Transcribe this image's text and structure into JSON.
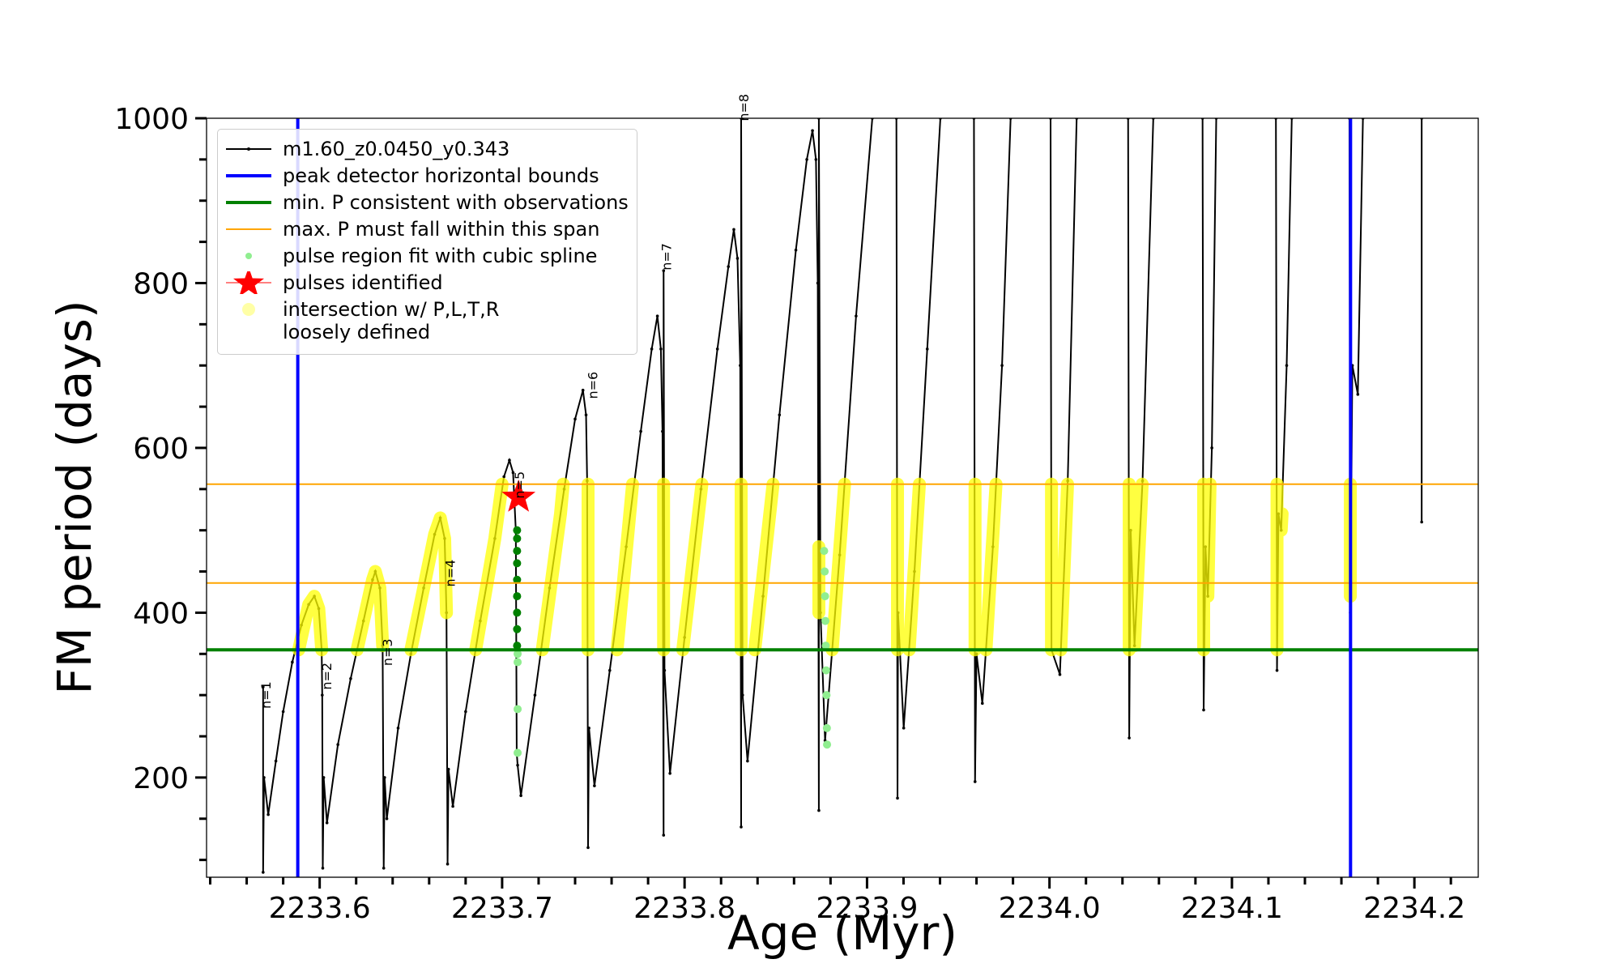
{
  "chart_data": {
    "type": "line",
    "xlabel": "Age (Myr)",
    "ylabel": "FM period (days)",
    "xlim": [
      2233.538,
      2234.235
    ],
    "ylim": [
      79,
      1000
    ],
    "xticks": [
      2233.6,
      2233.7,
      2233.8,
      2233.9,
      {
        "value": 2234,
        "label": "2234.0"
      },
      2234.1,
      2234.2
    ],
    "yticks": [
      200,
      400,
      600,
      800,
      1000
    ],
    "xminorticks": [
      2233.54,
      2233.56,
      2233.58,
      2233.62,
      2233.64,
      2233.66,
      2233.68,
      2233.72,
      2233.74,
      2233.76,
      2233.78,
      2233.82,
      2233.84,
      2233.86,
      2233.88,
      2233.92,
      2233.94,
      2233.96,
      2233.98,
      2234.02,
      2234.04,
      2234.06,
      2234.08,
      2234.12,
      2234.14,
      2234.16,
      2234.18,
      2234.22
    ],
    "yminorticks": [
      100,
      150,
      250,
      300,
      350,
      450,
      500,
      550,
      650,
      700,
      750,
      850,
      900,
      950
    ],
    "grid": false,
    "legend": "upper left",
    "series": [
      {
        "name": "m1.60_z0.0450_y0.343",
        "kind": "line",
        "color": "#000000",
        "x": [
          2233.569,
          2233.569,
          2233.5695,
          2233.5718,
          2233.576,
          2233.58,
          2233.585,
          2233.59,
          2233.594,
          2233.5971,
          2233.5995,
          2233.6011,
          2233.6014,
          2233.6017,
          2233.6022,
          2233.604,
          2233.61,
          2233.617,
          2233.624,
          2233.629,
          2233.6305,
          2233.633,
          2233.6345,
          2233.6351,
          2233.6356,
          2233.6368,
          2233.643,
          2233.65,
          2233.657,
          2233.663,
          2233.6661,
          2233.6685,
          2233.6695,
          2233.6701,
          2233.6706,
          2233.673,
          2233.68,
          2233.688,
          2233.696,
          2233.701,
          2233.704,
          2233.706,
          2233.7075,
          2233.708,
          2233.7085,
          2233.7103,
          2233.718,
          2233.726,
          2233.734,
          2233.74,
          2233.7443,
          2233.746,
          2233.7466,
          2233.7471,
          2233.7476,
          2233.7506,
          2233.759,
          2233.768,
          2233.776,
          2233.782,
          2233.7851,
          2233.787,
          2233.7879,
          2233.7885,
          2233.7885,
          2233.789,
          2233.792,
          2233.8,
          2233.809,
          2233.818,
          2233.824,
          2233.827,
          2233.829,
          2233.8305,
          2233.831,
          2233.831,
          2233.8318,
          2233.8345,
          2233.843,
          2233.852,
          2233.861,
          2233.867,
          2233.8701,
          2233.872,
          2233.873,
          2233.8736,
          2233.8736,
          2233.8745,
          2233.877,
          2233.885,
          2233.894,
          2233.9029,
          null,
          2233.9161,
          2233.9167,
          2233.917,
          2233.9201,
          2233.926,
          2233.933,
          2233.9402,
          null,
          2233.9586,
          2233.9592,
          2233.96,
          2233.9632,
          2233.969,
          2233.974,
          2233.9787,
          null,
          2234.0006,
          2234.0011,
          2234.0057,
          2234.01,
          2234.0149,
          null,
          2234.0431,
          2234.0437,
          2234.0445,
          2234.0466,
          2234.051,
          2234.0569,
          null,
          2234.0839,
          2234.0845,
          2234.0855,
          2234.0868,
          2234.089,
          2234.0914,
          null,
          2234.1241,
          2234.1247,
          2234.1255,
          2234.127,
          2234.13,
          2234.1328,
          null,
          2234.1644,
          2234.1649,
          2234.166,
          2234.169,
          2234.1718,
          null,
          2234.204,
          2234.204
        ],
        "y": [
          310,
          85,
          200,
          155,
          220,
          280,
          340,
          385,
          410,
          420,
          405,
          355,
          300,
          90,
          200,
          145,
          240,
          320,
          390,
          440,
          450,
          430,
          360,
          90,
          200,
          150,
          260,
          350,
          430,
          495,
          515,
          490,
          400,
          95,
          210,
          165,
          280,
          390,
          490,
          565,
          585,
          570,
          500,
          230,
          215,
          178,
          300,
          430,
          550,
          635,
          670,
          640,
          560,
          115,
          260,
          190,
          330,
          480,
          620,
          720,
          760,
          720,
          620,
          130,
          815,
          330,
          205,
          370,
          550,
          720,
          820,
          865,
          830,
          700,
          140,
          1000,
          300,
          220,
          420,
          640,
          840,
          950,
          985,
          950,
          800,
          160,
          1000,
          400,
          245,
          470,
          760,
          1000,
          null,
          1000,
          175,
          400,
          260,
          450,
          720,
          1000,
          null,
          1000,
          195,
          350,
          290,
          480,
          700,
          1000,
          null,
          1000,
          355,
          325,
          560,
          1000,
          null,
          1000,
          248,
          500,
          360,
          560,
          1000,
          null,
          1000,
          282,
          480,
          420,
          600,
          1000,
          null,
          1000,
          330,
          520,
          500,
          700,
          1000,
          null,
          1000,
          400,
          700,
          665,
          1000,
          null,
          1000,
          510
        ]
      },
      {
        "name": "peak detector horizontal bounds",
        "kind": "vline",
        "color": "#0000ff",
        "x": [
          2233.588,
          2234.165
        ]
      },
      {
        "name": "min. P consistent with observations",
        "kind": "hline",
        "color": "#008000",
        "y": [
          355
        ]
      },
      {
        "name": "max. P must fall within this span",
        "kind": "hline",
        "color": "#ffa500",
        "y": [
          436,
          556
        ]
      },
      {
        "name": "pulse region fit with cubic spline",
        "kind": "scatter",
        "color": "#90ee90",
        "x": [
          2233.7085,
          2233.7085,
          2233.7085,
          2233.7085,
          2233.8765,
          2233.8768,
          2233.877,
          2233.8772,
          2233.8774,
          2233.8776,
          2233.8778,
          2233.878,
          2233.8781
        ],
        "y": [
          230,
          283,
          340,
          350,
          475,
          450,
          420,
          390,
          360,
          330,
          300,
          260,
          240
        ]
      },
      {
        "name": "pulses identified",
        "kind": "star",
        "color": "#ff0000",
        "x": [
          2233.709
        ],
        "y": [
          540
        ]
      },
      {
        "name": "intersection w/ P,L,T,R\nloosely defined",
        "kind": "band",
        "color": "#ffff00",
        "x": [
          2233.5885,
          2233.594,
          2233.5971,
          2233.5995,
          2233.6011,
          null,
          2233.6205,
          2233.629,
          2233.6305,
          2233.633,
          2233.6345,
          null,
          2233.65,
          2233.657,
          2233.663,
          2233.6661,
          2233.6685,
          2233.6695,
          null,
          2233.6855,
          2233.696,
          2233.7,
          null,
          2233.722,
          2233.732,
          2233.7335,
          null,
          2233.7471,
          2233.7471,
          null,
          2233.763,
          2233.7715,
          null,
          2233.7885,
          2233.7885,
          null,
          2233.799,
          2233.8095,
          null,
          2233.831,
          2233.831,
          null,
          2233.8385,
          2233.8485,
          null,
          2233.8736,
          2233.8736,
          null,
          2233.8809,
          2233.8877,
          null,
          2233.9167,
          2233.9167,
          null,
          2233.9231,
          2233.9287,
          null,
          2233.9592,
          2233.9592,
          null,
          2233.9652,
          2233.9707,
          null,
          2234.0011,
          2234.0011,
          null,
          2234.0062,
          2234.0099,
          null,
          2234.0437,
          2234.0437,
          null,
          2234.0466,
          2234.0508,
          null,
          2234.0845,
          2234.0845,
          null,
          2234.0868,
          2234.088,
          null,
          2234.1247,
          2234.1247,
          null,
          2234.127,
          2234.1275,
          null,
          2234.1649,
          2234.1649
        ],
        "y": [
          355,
          410,
          420,
          405,
          355,
          null,
          355,
          440,
          450,
          430,
          360,
          null,
          355,
          430,
          495,
          515,
          490,
          400,
          null,
          355,
          490,
          556,
          null,
          355,
          520,
          556,
          null,
          355,
          556,
          null,
          355,
          556,
          null,
          355,
          556,
          null,
          355,
          556,
          null,
          355,
          556,
          null,
          355,
          556,
          null,
          400,
          480,
          null,
          355,
          556,
          null,
          355,
          556,
          null,
          355,
          556,
          null,
          355,
          556,
          null,
          355,
          556,
          null,
          355,
          556,
          null,
          355,
          556,
          null,
          355,
          556,
          null,
          360,
          556,
          null,
          355,
          556,
          null,
          420,
          556,
          null,
          355,
          556,
          null,
          500,
          520,
          null,
          420,
          556
        ]
      },
      {
        "kind": "scatter",
        "color": "#008000",
        "x": [
          2233.7082,
          2233.7082,
          2233.7082,
          2233.7082,
          2233.7082,
          2233.7082,
          2233.7082,
          2233.7082,
          2233.7082
        ],
        "y": [
          360,
          380,
          400,
          420,
          440,
          460,
          475,
          490,
          500
        ]
      }
    ],
    "annotations": [
      {
        "text": "n=1",
        "x": 2233.573,
        "y": 300
      },
      {
        "text": "n=2",
        "x": 2233.6063,
        "y": 323
      },
      {
        "text": "n=3",
        "x": 2233.6397,
        "y": 352
      },
      {
        "text": "n=4",
        "x": 2233.6741,
        "y": 448
      },
      {
        "text": "n=5",
        "x": 2233.7121,
        "y": 555
      },
      {
        "text": "n=6",
        "x": 2233.7523,
        "y": 676
      },
      {
        "text": "n=7",
        "x": 2233.7925,
        "y": 832
      },
      {
        "text": "n=8",
        "x": 2233.8351,
        "y": 1013
      }
    ]
  }
}
